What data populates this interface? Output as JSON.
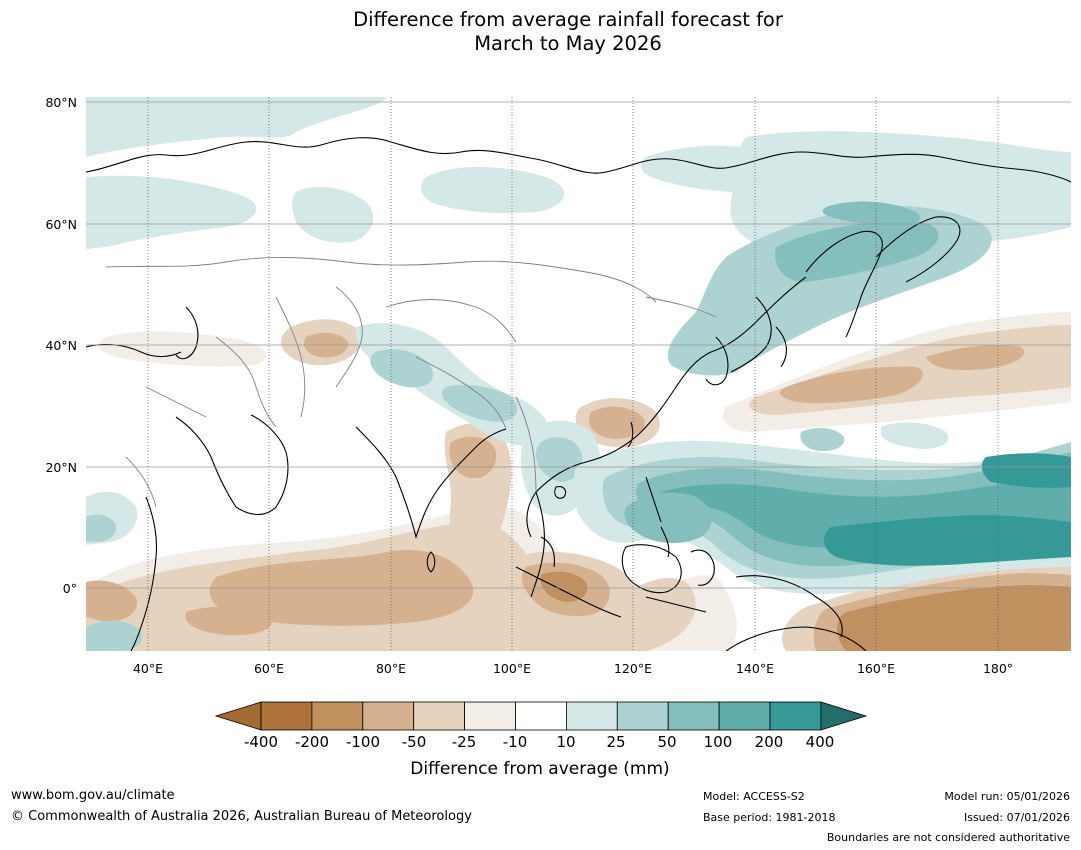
{
  "title": {
    "line1": "Difference from average rainfall forecast for",
    "line2": "March to May 2026"
  },
  "map": {
    "lat_labels": [
      "80°N",
      "60°N",
      "40°N",
      "20°N",
      "0°"
    ],
    "lon_labels": [
      "40°E",
      "60°E",
      "80°E",
      "100°E",
      "120°E",
      "140°E",
      "160°E",
      "180°"
    ]
  },
  "colorbar": {
    "title": "Difference from average (mm)",
    "tick_labels": [
      "-400",
      "-200",
      "-100",
      "-50",
      "-25",
      "-10",
      "10",
      "25",
      "50",
      "100",
      "200",
      "400"
    ],
    "colors": [
      "#a36a32",
      "#ad733a",
      "#c0905f",
      "#d5b18f",
      "#e5d3c0",
      "#f2ede7",
      "#ffffff",
      "#d4e8e7",
      "#acd3d2",
      "#85bfbd",
      "#5faeac",
      "#359996",
      "#236e6b"
    ]
  },
  "footer": {
    "website": "www.bom.gov.au/climate",
    "copyright": "© Commonwealth of Australia 2026, Australian Bureau of Meteorology",
    "model": "Model: ACCESS-S2",
    "base_period": "Base period: 1981-2018",
    "model_run": "Model run: 05/01/2026",
    "issued": "Issued: 07/01/2026",
    "disclaimer": "Boundaries are not considered authoritative"
  }
}
